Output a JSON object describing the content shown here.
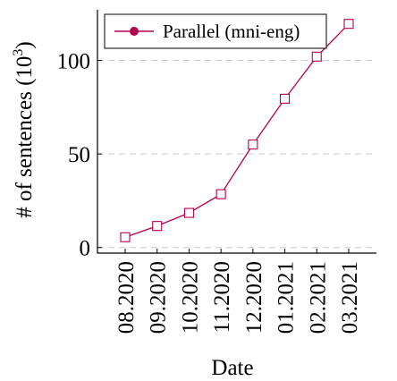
{
  "chart_data": {
    "type": "line",
    "categories": [
      "08.2020",
      "09.2020",
      "10.2020",
      "11.2020",
      "12.2020",
      "01.2021",
      "02.2021",
      "03.2021"
    ],
    "series": [
      {
        "name": "Parallel (mni-eng)",
        "values": [
          5.5,
          11.5,
          18.5,
          28.5,
          55,
          79.5,
          102,
          119.5
        ]
      }
    ],
    "xlabel": "Date",
    "ylabel": "# of sentences (10",
    "ylabel_exponent": "3",
    "ylabel_suffix": ")",
    "ylim": [
      -3,
      127
    ],
    "yticks": [
      0,
      50,
      100
    ],
    "grid": "horizontal-dashed",
    "legend_position": "top-left",
    "series_color": "#b5004e"
  }
}
